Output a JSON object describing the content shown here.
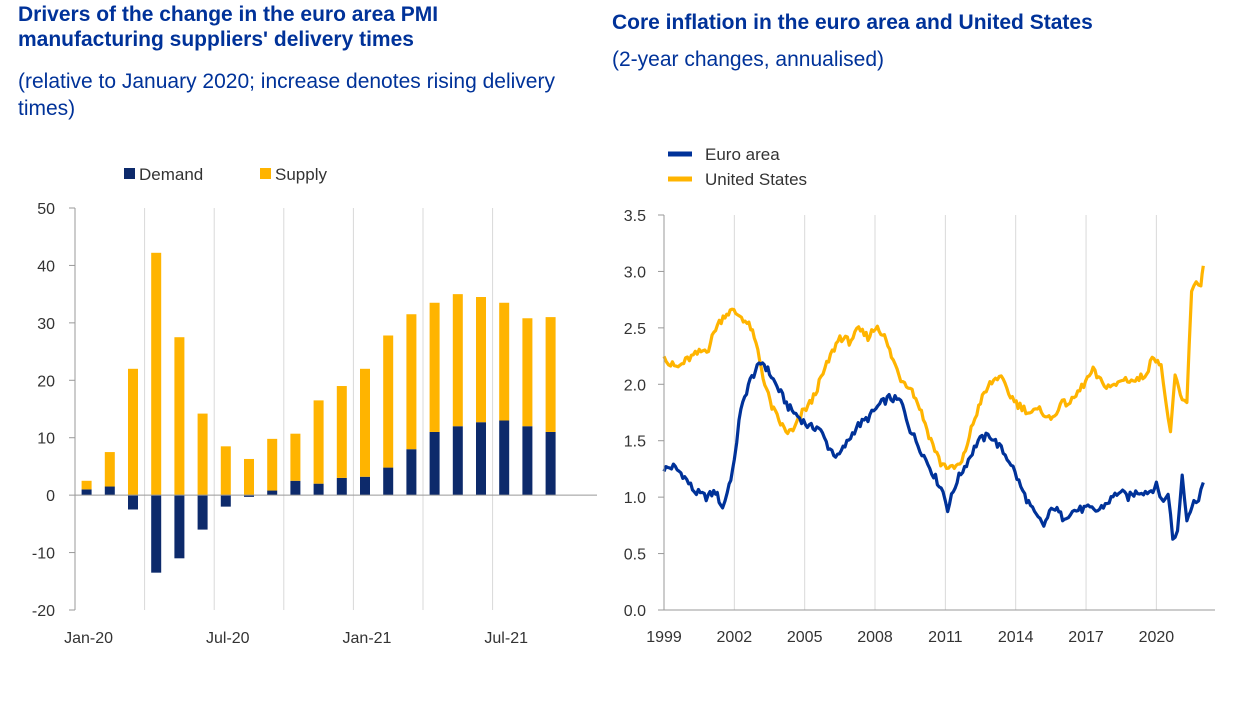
{
  "colors": {
    "demand": "#0d2a6b",
    "supply": "#ffb400",
    "euro_area": "#003299",
    "united_states": "#ffb400",
    "title": "#003299"
  },
  "left_panel": {
    "title": "Drivers of the change in the euro area PMI manufacturing suppliers' delivery times",
    "subtitle": "(relative to January 2020; increase denotes rising delivery times)"
  },
  "right_panel": {
    "title": "Core inflation in the euro area and United States",
    "subtitle": "(2-year changes, annualised)"
  },
  "chart_data": [
    {
      "type": "bar",
      "stacked": true,
      "categories": [
        "Jan-20",
        "Feb-20",
        "Mar-20",
        "Apr-20",
        "May-20",
        "Jun-20",
        "Jul-20",
        "Aug-20",
        "Sep-20",
        "Oct-20",
        "Nov-20",
        "Dec-20",
        "Jan-21",
        "Feb-21",
        "Mar-21",
        "Apr-21",
        "May-21",
        "Jun-21",
        "Jul-21",
        "Aug-21",
        "Sep-21"
      ],
      "x_tick_labels": [
        "Jan-20",
        "Jul-20",
        "Jan-21",
        "Jul-21"
      ],
      "x_tick_categories": [
        "Jan-20",
        "Jul-20",
        "Jan-21",
        "Jul-21"
      ],
      "series": [
        {
          "name": "Demand",
          "values": [
            1.0,
            1.5,
            -2.5,
            -13.5,
            -11.0,
            -6.0,
            -2.0,
            -0.3,
            0.8,
            2.5,
            2.0,
            3.0,
            3.2,
            4.8,
            8.0,
            11.0,
            12.0,
            12.7,
            13.0,
            12.0,
            11.0
          ]
        },
        {
          "name": "Supply",
          "values": [
            1.5,
            6.0,
            22.0,
            42.2,
            27.5,
            14.2,
            8.5,
            6.3,
            9.0,
            8.2,
            14.5,
            16.0,
            18.8,
            23.0,
            23.5,
            22.5,
            23.0,
            21.8,
            20.5,
            18.8,
            20.0
          ]
        }
      ],
      "xlabel": "",
      "ylabel": "",
      "ylim": [
        -20,
        50
      ],
      "yticks": [
        -20,
        -10,
        0,
        10,
        20,
        30,
        40,
        50
      ],
      "grid": "vertical",
      "legend": "top"
    },
    {
      "type": "line",
      "x_start": "1999-01",
      "frequency": "monthly",
      "x_tick_labels": [
        "1999",
        "2002",
        "2005",
        "2008",
        "2011",
        "2014",
        "2017",
        "2020"
      ],
      "x_tick_values": [
        1999,
        2002,
        2005,
        2008,
        2011,
        2014,
        2017,
        2020
      ],
      "xlim": [
        1999,
        2022.5
      ],
      "ylim": [
        0.0,
        3.5
      ],
      "yticks": [
        "0.0",
        "0.5",
        "1.0",
        "1.5",
        "2.0",
        "2.5",
        "3.0",
        "3.5"
      ],
      "xlabel": "",
      "ylabel": "",
      "grid": "vertical",
      "legend": "top-left",
      "series": [
        {
          "name": "Euro area",
          "anchors": [
            [
              1999.0,
              1.25
            ],
            [
              1999.4,
              1.27
            ],
            [
              1999.8,
              1.2
            ],
            [
              2000.3,
              1.05
            ],
            [
              2000.8,
              1.0
            ],
            [
              2001.2,
              1.05
            ],
            [
              2001.5,
              0.9
            ],
            [
              2001.7,
              1.05
            ],
            [
              2002.0,
              1.3
            ],
            [
              2002.2,
              1.7
            ],
            [
              2002.6,
              2.0
            ],
            [
              2002.9,
              2.12
            ],
            [
              2003.2,
              2.2
            ],
            [
              2003.5,
              2.1
            ],
            [
              2003.9,
              1.95
            ],
            [
              2004.3,
              1.8
            ],
            [
              2004.7,
              1.72
            ],
            [
              2005.2,
              1.62
            ],
            [
              2005.6,
              1.62
            ],
            [
              2006.0,
              1.45
            ],
            [
              2006.4,
              1.35
            ],
            [
              2006.8,
              1.48
            ],
            [
              2007.2,
              1.62
            ],
            [
              2007.7,
              1.7
            ],
            [
              2008.2,
              1.82
            ],
            [
              2008.6,
              1.88
            ],
            [
              2009.1,
              1.85
            ],
            [
              2009.5,
              1.6
            ],
            [
              2010.0,
              1.4
            ],
            [
              2010.5,
              1.2
            ],
            [
              2010.9,
              1.05
            ],
            [
              2011.1,
              0.9
            ],
            [
              2011.5,
              1.15
            ],
            [
              2011.9,
              1.3
            ],
            [
              2012.4,
              1.5
            ],
            [
              2012.9,
              1.55
            ],
            [
              2013.3,
              1.45
            ],
            [
              2013.8,
              1.3
            ],
            [
              2014.3,
              1.05
            ],
            [
              2014.8,
              0.85
            ],
            [
              2015.2,
              0.75
            ],
            [
              2015.6,
              0.92
            ],
            [
              2016.0,
              0.82
            ],
            [
              2016.5,
              0.88
            ],
            [
              2017.0,
              0.9
            ],
            [
              2017.5,
              0.88
            ],
            [
              2017.9,
              0.95
            ],
            [
              2018.4,
              1.05
            ],
            [
              2018.8,
              1.0
            ],
            [
              2019.2,
              1.05
            ],
            [
              2019.7,
              1.05
            ],
            [
              2020.0,
              1.1
            ],
            [
              2020.3,
              0.95
            ],
            [
              2020.5,
              1.05
            ],
            [
              2020.7,
              0.62
            ],
            [
              2020.9,
              0.7
            ],
            [
              2021.1,
              1.2
            ],
            [
              2021.3,
              0.82
            ],
            [
              2021.6,
              0.95
            ],
            [
              2021.8,
              1.0
            ],
            [
              2022.0,
              1.13
            ]
          ]
        },
        {
          "name": "United States",
          "anchors": [
            [
              1999.0,
              2.28
            ],
            [
              1999.2,
              2.18
            ],
            [
              1999.6,
              2.15
            ],
            [
              2000.0,
              2.22
            ],
            [
              2000.5,
              2.28
            ],
            [
              2000.9,
              2.32
            ],
            [
              2001.2,
              2.5
            ],
            [
              2001.6,
              2.62
            ],
            [
              2001.9,
              2.65
            ],
            [
              2002.3,
              2.6
            ],
            [
              2002.7,
              2.5
            ],
            [
              2003.0,
              2.3
            ],
            [
              2003.3,
              2.0
            ],
            [
              2003.6,
              1.8
            ],
            [
              2003.9,
              1.68
            ],
            [
              2004.2,
              1.58
            ],
            [
              2004.5,
              1.58
            ],
            [
              2004.9,
              1.75
            ],
            [
              2005.3,
              1.85
            ],
            [
              2005.7,
              2.05
            ],
            [
              2006.1,
              2.25
            ],
            [
              2006.5,
              2.42
            ],
            [
              2006.9,
              2.38
            ],
            [
              2007.3,
              2.48
            ],
            [
              2007.7,
              2.42
            ],
            [
              2008.1,
              2.52
            ],
            [
              2008.4,
              2.42
            ],
            [
              2008.7,
              2.25
            ],
            [
              2009.1,
              2.05
            ],
            [
              2009.5,
              1.98
            ],
            [
              2009.9,
              1.8
            ],
            [
              2010.3,
              1.55
            ],
            [
              2010.8,
              1.3
            ],
            [
              2011.3,
              1.25
            ],
            [
              2011.7,
              1.3
            ],
            [
              2012.1,
              1.6
            ],
            [
              2012.5,
              1.85
            ],
            [
              2012.9,
              2.0
            ],
            [
              2013.3,
              2.08
            ],
            [
              2013.7,
              1.92
            ],
            [
              2014.1,
              1.82
            ],
            [
              2014.6,
              1.75
            ],
            [
              2015.1,
              1.77
            ],
            [
              2015.5,
              1.68
            ],
            [
              2015.9,
              1.82
            ],
            [
              2016.4,
              1.85
            ],
            [
              2016.9,
              2.0
            ],
            [
              2017.3,
              2.12
            ],
            [
              2017.7,
              2.0
            ],
            [
              2018.2,
              1.98
            ],
            [
              2018.6,
              2.05
            ],
            [
              2019.1,
              2.03
            ],
            [
              2019.5,
              2.08
            ],
            [
              2019.9,
              2.25
            ],
            [
              2020.2,
              2.18
            ],
            [
              2020.4,
              1.82
            ],
            [
              2020.6,
              1.6
            ],
            [
              2020.8,
              2.05
            ],
            [
              2021.1,
              1.85
            ],
            [
              2021.3,
              1.85
            ],
            [
              2021.5,
              2.8
            ],
            [
              2021.7,
              2.92
            ],
            [
              2021.9,
              2.88
            ],
            [
              2022.0,
              3.05
            ]
          ]
        }
      ]
    }
  ]
}
